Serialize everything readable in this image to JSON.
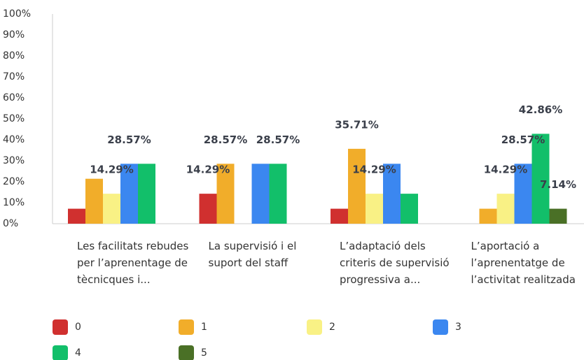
{
  "chart_data": {
    "type": "bar",
    "categories": [
      "Les facilitats rebudes per l’aprenentage de tècnicques i...",
      "La supervisió i el suport del staff",
      "L’adaptació dels criteris de supervisió progressiva a...",
      "L’aportació a l’aprenentatge de l’activitat realitzada"
    ],
    "series": [
      {
        "name": "0",
        "color": "#d0302f",
        "values": [
          7.14,
          14.29,
          7.14,
          0
        ],
        "value_labels": [
          null,
          "14.29%",
          null,
          null
        ]
      },
      {
        "name": "1",
        "color": "#f1ad2a",
        "values": [
          21.43,
          28.57,
          35.71,
          7.14
        ],
        "value_labels": [
          null,
          "28.57%",
          "35.71%",
          null
        ]
      },
      {
        "name": "2",
        "color": "#f9f185",
        "values": [
          14.29,
          0,
          14.29,
          14.29
        ],
        "value_labels": [
          "14.29%",
          null,
          "14.29%",
          "14.29%"
        ]
      },
      {
        "name": "3",
        "color": "#3b87f0",
        "values": [
          28.57,
          28.57,
          28.57,
          28.57
        ],
        "value_labels": [
          "28.57%",
          null,
          null,
          "28.57%"
        ]
      },
      {
        "name": "4",
        "color": "#12bf6a",
        "values": [
          28.57,
          28.57,
          14.29,
          42.86
        ],
        "value_labels": [
          null,
          "28.57%",
          null,
          "42.86%"
        ]
      },
      {
        "name": "5",
        "color": "#4a7026",
        "values": [
          0,
          0,
          0,
          7.14
        ],
        "value_labels": [
          null,
          null,
          null,
          "7.14%"
        ]
      }
    ],
    "ylim": [
      0,
      100
    ],
    "yticks": [
      {
        "value": 0,
        "label": "0%"
      },
      {
        "value": 10,
        "label": "10%"
      },
      {
        "value": 20,
        "label": "20%"
      },
      {
        "value": 30,
        "label": "30%"
      },
      {
        "value": 40,
        "label": "40%"
      },
      {
        "value": 50,
        "label": "50%"
      },
      {
        "value": 60,
        "label": "60%"
      },
      {
        "value": 70,
        "label": "70%"
      },
      {
        "value": 80,
        "label": "80%"
      },
      {
        "value": 90,
        "label": "90%"
      },
      {
        "value": 100,
        "label": "100%"
      }
    ],
    "grid": false,
    "legend": "bottom"
  }
}
